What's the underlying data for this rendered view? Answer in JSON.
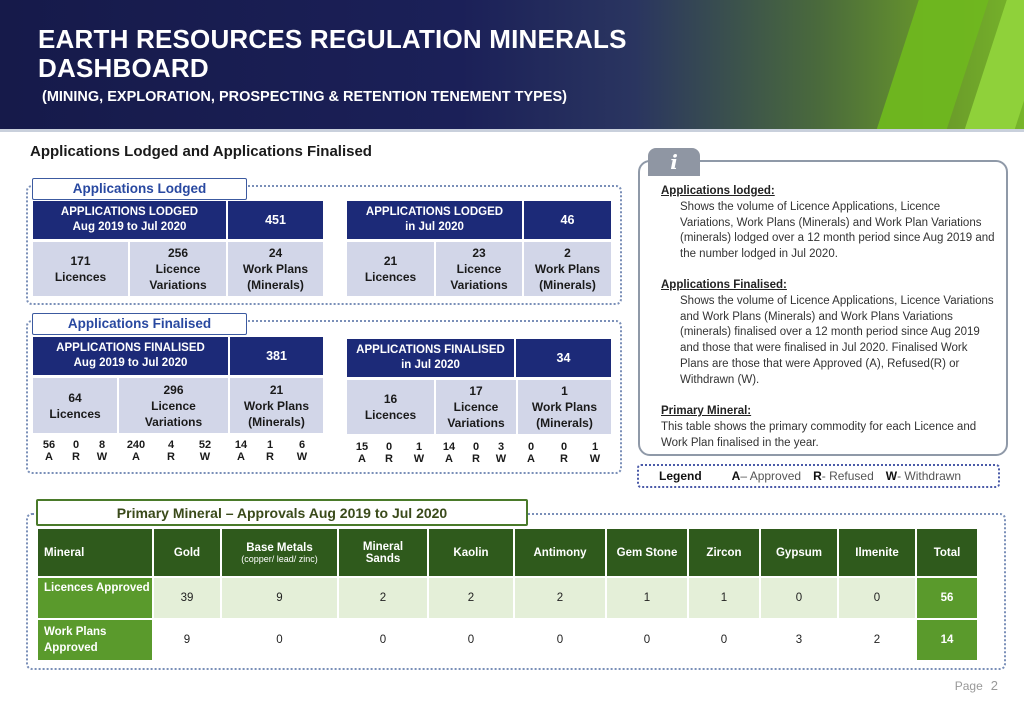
{
  "header": {
    "title": "EARTH RESOURCES REGULATION MINERALS DASHBOARD",
    "subtitle": "(MINING, EXPLORATION, PROSPECTING & RETENTION TENEMENT TYPES)"
  },
  "section_title": "Applications Lodged and Applications Finalised",
  "lodged": {
    "label": "Applications Lodged",
    "period_box": {
      "title": "APPLICATIONS LODGED",
      "period": "Aug 2019 to Jul 2020",
      "total": "451",
      "items": [
        {
          "value": "171",
          "label": "Licences"
        },
        {
          "value": "256",
          "label": "Licence Variations"
        },
        {
          "value": "24",
          "label": "Work Plans (Minerals)"
        }
      ]
    },
    "month_box": {
      "title": "APPLICATIONS LODGED",
      "period": "in Jul 2020",
      "total": "46",
      "items": [
        {
          "value": "21",
          "label": "Licences"
        },
        {
          "value": "23",
          "label": "Licence Variations"
        },
        {
          "value": "2",
          "label": "Work Plans (Minerals)"
        }
      ]
    }
  },
  "finalised": {
    "label": "Applications Finalised",
    "period_box": {
      "title": "APPLICATIONS FINALISED",
      "period": "Aug 2019 to Jul 2020",
      "total": "381",
      "items": [
        {
          "value": "64",
          "label": "Licences"
        },
        {
          "value": "296",
          "label": "Licence Variations"
        },
        {
          "value": "21",
          "label": "Work Plans (Minerals)"
        }
      ],
      "breakdown": [
        {
          "v": "56",
          "k": "A"
        },
        {
          "v": "0",
          "k": "R"
        },
        {
          "v": "8",
          "k": "W"
        },
        {
          "v": "240",
          "k": "A"
        },
        {
          "v": "4",
          "k": "R"
        },
        {
          "v": "52",
          "k": "W"
        },
        {
          "v": "14",
          "k": "A"
        },
        {
          "v": "1",
          "k": "R"
        },
        {
          "v": "6",
          "k": "W"
        }
      ]
    },
    "month_box": {
      "title": "APPLICATIONS FINALISED",
      "period": "in Jul 2020",
      "total": "34",
      "items": [
        {
          "value": "16",
          "label": "Licences"
        },
        {
          "value": "17",
          "label": "Licence Variations"
        },
        {
          "value": "1",
          "label": "Work Plans (Minerals)"
        }
      ],
      "breakdown": [
        {
          "v": "15",
          "k": "A"
        },
        {
          "v": "0",
          "k": "R"
        },
        {
          "v": "1",
          "k": "W"
        },
        {
          "v": "14",
          "k": "A"
        },
        {
          "v": "0",
          "k": "R"
        },
        {
          "v": "3",
          "k": "W"
        },
        {
          "v": "0",
          "k": "A"
        },
        {
          "v": "0",
          "k": "R"
        },
        {
          "v": "1",
          "k": "W"
        }
      ]
    }
  },
  "info": {
    "tab": "i",
    "lodged_head": "Applications lodged:",
    "lodged_text": "Shows the volume of Licence Applications, Licence Variations, Work Plans (Minerals) and Work Plan Variations (minerals) lodged over a 12 month period since Aug 2019 and the number lodged in Jul 2020.",
    "finalised_head": "Applications Finalised:",
    "finalised_text": "Shows the volume of Licence Applications, Licence Variations and Work Plans (Minerals) and Work Plans Variations (minerals) finalised over a 12 month period since Aug 2019 and those that were finalised in Jul 2020. Finalised Work Plans are those that were Approved (A), Refused(R) or Withdrawn (W).",
    "primary_head": "Primary Mineral:",
    "primary_text": "This table shows the primary commodity for each Licence and Work Plan finalised in the year."
  },
  "legend": {
    "title": "Legend",
    "a_key": "A",
    "a_text": "– Approved",
    "r_key": "R",
    "r_text": " - Refused",
    "w_key": "W",
    "w_text": " - Withdrawn"
  },
  "mineral": {
    "label": "Primary Mineral – Approvals Aug 2019 to Jul 2020",
    "headers": [
      "Mineral",
      "Gold",
      "Base Metals",
      "Mineral Sands",
      "Kaolin",
      "Antimony",
      "Gem Stone",
      "Zircon",
      "Gypsum",
      "Ilmenite",
      "Total"
    ],
    "base_metals_sub": "(copper/ lead/ zinc)",
    "rows": [
      {
        "label": "Licences Approved",
        "values": [
          "39",
          "9",
          "2",
          "2",
          "2",
          "1",
          "1",
          "0",
          "0",
          "56"
        ]
      },
      {
        "label": "Work Plans Approved",
        "values": [
          "9",
          "0",
          "0",
          "0",
          "0",
          "0",
          "0",
          "3",
          "2",
          "14"
        ]
      }
    ]
  },
  "page": {
    "label": "Page",
    "number": "2"
  }
}
